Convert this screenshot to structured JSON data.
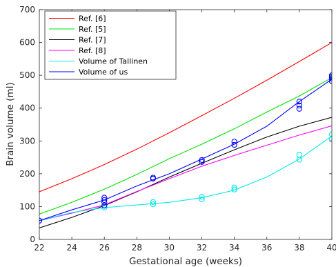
{
  "chart_data": {
    "type": "line",
    "xlabel": "Gestational age (weeks)",
    "ylabel": "Brain volume (ml)",
    "xlim": [
      22,
      40
    ],
    "ylim": [
      0,
      700
    ],
    "xticks": [
      22,
      24,
      26,
      28,
      30,
      32,
      34,
      36,
      38,
      40
    ],
    "yticks": [
      0,
      100,
      200,
      300,
      400,
      500,
      600,
      700
    ],
    "grid": false,
    "legend_position": "top-left",
    "series": [
      {
        "name": "Ref. [6]",
        "color": "#ff0000",
        "x": [
          22,
          24,
          26,
          28,
          30,
          32,
          34,
          36,
          38,
          40
        ],
        "y": [
          145,
          185,
          228,
          275,
          325,
          377,
          430,
          485,
          542,
          600
        ]
      },
      {
        "name": "Ref. [5]",
        "color": "#00e000",
        "x": [
          22,
          24,
          26,
          28,
          30,
          32,
          34,
          36,
          38,
          40
        ],
        "y": [
          77,
          113,
          153,
          198,
          246,
          290,
          337,
          388,
          437,
          493
        ]
      },
      {
        "name": "Ref. [7]",
        "color": "#000000",
        "x": [
          22,
          24,
          26,
          28,
          30,
          32,
          34,
          36,
          38,
          40
        ],
        "y": [
          35,
          67,
          103,
          145,
          190,
          232,
          273,
          312,
          345,
          372
        ]
      },
      {
        "name": "Ref. [8]",
        "color": "#ff00ff",
        "x": [
          22,
          24,
          26,
          28,
          30,
          32,
          34,
          36,
          38,
          40
        ],
        "y": [
          57,
          80,
          105,
          146,
          185,
          223,
          256,
          287,
          318,
          346
        ]
      },
      {
        "name": "Volume of Tallinen",
        "color": "#00e8e8",
        "x": [
          22,
          24,
          26,
          28,
          30,
          32,
          34,
          36,
          38,
          40
        ],
        "y": [
          57,
          82,
          97,
          105,
          113,
          127,
          150,
          190,
          245,
          315
        ],
        "markers": {
          "x": [
            22,
            26,
            26,
            29,
            29,
            32,
            32,
            34,
            34,
            38,
            38,
            40,
            40
          ],
          "y": [
            57,
            97,
            103,
            107,
            114,
            122,
            130,
            152,
            158,
            243,
            258,
            307,
            320
          ]
        }
      },
      {
        "name": "Volume of us",
        "color": "#0000ff",
        "x": [
          22,
          24,
          26,
          28,
          30,
          32,
          34,
          36,
          38,
          40
        ],
        "y": [
          57,
          90,
          120,
          163,
          200,
          245,
          290,
          345,
          420,
          488
        ],
        "markers": {
          "x": [
            22,
            26,
            26,
            26,
            26,
            29,
            29,
            32,
            32,
            34,
            34,
            38,
            38,
            38,
            40,
            40,
            40,
            40
          ],
          "y": [
            57,
            103,
            113,
            120,
            127,
            185,
            188,
            236,
            242,
            288,
            298,
            398,
            408,
            420,
            482,
            490,
            496,
            500
          ]
        }
      }
    ]
  }
}
